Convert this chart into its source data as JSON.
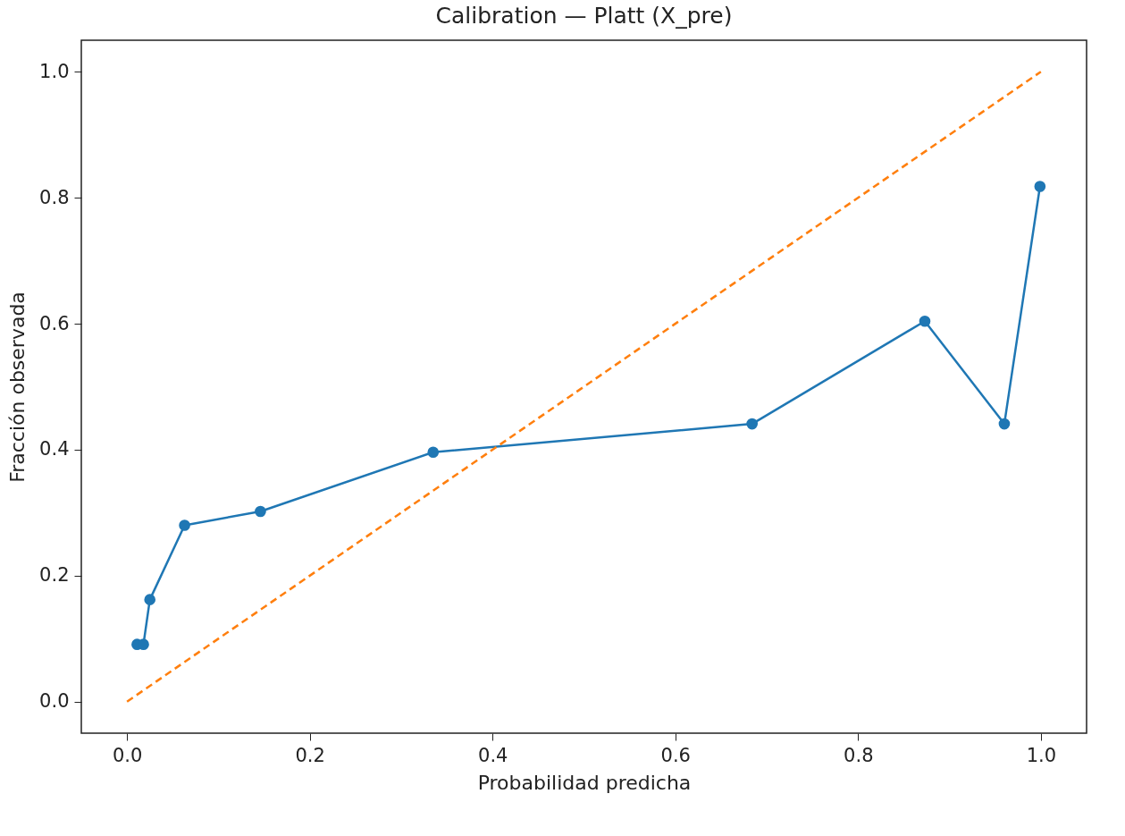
{
  "chart_data": {
    "type": "line",
    "title": "Calibration — Platt (X_pre)",
    "xlabel": "Probabilidad predicha",
    "ylabel": "Fracción observada",
    "xlim": [
      -0.05,
      1.05
    ],
    "ylim": [
      -0.05,
      1.05
    ],
    "xticks": [
      {
        "value": 0,
        "label": "0.0"
      },
      0.2,
      0.4,
      0.6,
      0.8,
      {
        "value": 1,
        "label": "1.0"
      }
    ],
    "yticks": [
      {
        "value": 0,
        "label": "0.0"
      },
      0.2,
      0.4,
      0.6,
      0.8,
      {
        "value": 1,
        "label": "1.0"
      }
    ],
    "grid": false,
    "series": [
      {
        "color": "#1f77b4",
        "marker": "circle",
        "line_style": "solid",
        "x": [
          0.011,
          0.018,
          0.025,
          0.063,
          0.146,
          0.335,
          0.684,
          0.873,
          0.96,
          0.999
        ],
        "values": [
          0.091,
          0.091,
          0.162,
          0.28,
          0.302,
          0.396,
          0.441,
          0.604,
          0.441,
          0.818
        ]
      },
      {
        "color": "#ff7f0e",
        "marker": "none",
        "line_style": "dashed",
        "x": [
          0,
          1
        ],
        "values": [
          0,
          1
        ]
      }
    ]
  }
}
